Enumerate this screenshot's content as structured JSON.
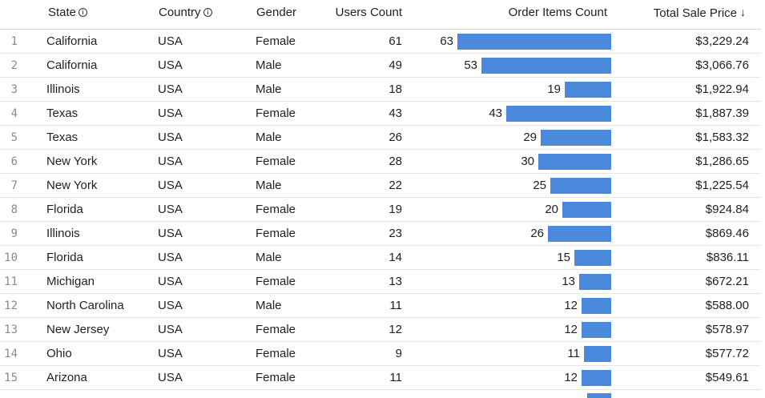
{
  "headers": {
    "state": "State",
    "country": "Country",
    "gender": "Gender",
    "users_count": "Users Count",
    "order_items_count": "Order Items Count",
    "total_sale_price": "Total Sale Price"
  },
  "icons": {
    "state_info": "info-icon",
    "country_info": "info-icon",
    "sort": "arrow-down-icon"
  },
  "colors": {
    "bar": "#4a89dc"
  },
  "order_items_max": 63,
  "rows": [
    {
      "index": "1",
      "state": "California",
      "country": "USA",
      "gender": "Female",
      "users": "61",
      "orders": 63,
      "orders_label": "63",
      "sale": "$3,229.24"
    },
    {
      "index": "2",
      "state": "California",
      "country": "USA",
      "gender": "Male",
      "users": "49",
      "orders": 53,
      "orders_label": "53",
      "sale": "$3,066.76"
    },
    {
      "index": "3",
      "state": "Illinois",
      "country": "USA",
      "gender": "Male",
      "users": "18",
      "orders": 19,
      "orders_label": "19",
      "sale": "$1,922.94"
    },
    {
      "index": "4",
      "state": "Texas",
      "country": "USA",
      "gender": "Female",
      "users": "43",
      "orders": 43,
      "orders_label": "43",
      "sale": "$1,887.39"
    },
    {
      "index": "5",
      "state": "Texas",
      "country": "USA",
      "gender": "Male",
      "users": "26",
      "orders": 29,
      "orders_label": "29",
      "sale": "$1,583.32"
    },
    {
      "index": "6",
      "state": "New York",
      "country": "USA",
      "gender": "Female",
      "users": "28",
      "orders": 30,
      "orders_label": "30",
      "sale": "$1,286.65"
    },
    {
      "index": "7",
      "state": "New York",
      "country": "USA",
      "gender": "Male",
      "users": "22",
      "orders": 25,
      "orders_label": "25",
      "sale": "$1,225.54"
    },
    {
      "index": "8",
      "state": "Florida",
      "country": "USA",
      "gender": "Female",
      "users": "19",
      "orders": 20,
      "orders_label": "20",
      "sale": "$924.84"
    },
    {
      "index": "9",
      "state": "Illinois",
      "country": "USA",
      "gender": "Female",
      "users": "23",
      "orders": 26,
      "orders_label": "26",
      "sale": "$869.46"
    },
    {
      "index": "10",
      "state": "Florida",
      "country": "USA",
      "gender": "Male",
      "users": "14",
      "orders": 15,
      "orders_label": "15",
      "sale": "$836.11"
    },
    {
      "index": "11",
      "state": "Michigan",
      "country": "USA",
      "gender": "Female",
      "users": "13",
      "orders": 13,
      "orders_label": "13",
      "sale": "$672.21"
    },
    {
      "index": "12",
      "state": "North Carolina",
      "country": "USA",
      "gender": "Male",
      "users": "11",
      "orders": 12,
      "orders_label": "12",
      "sale": "$588.00"
    },
    {
      "index": "13",
      "state": "New Jersey",
      "country": "USA",
      "gender": "Female",
      "users": "12",
      "orders": 12,
      "orders_label": "12",
      "sale": "$578.97"
    },
    {
      "index": "14",
      "state": "Ohio",
      "country": "USA",
      "gender": "Female",
      "users": "9",
      "orders": 11,
      "orders_label": "11",
      "sale": "$577.72"
    },
    {
      "index": "15",
      "state": "Arizona",
      "country": "USA",
      "gender": "Female",
      "users": "11",
      "orders": 12,
      "orders_label": "12",
      "sale": "$549.61"
    }
  ]
}
